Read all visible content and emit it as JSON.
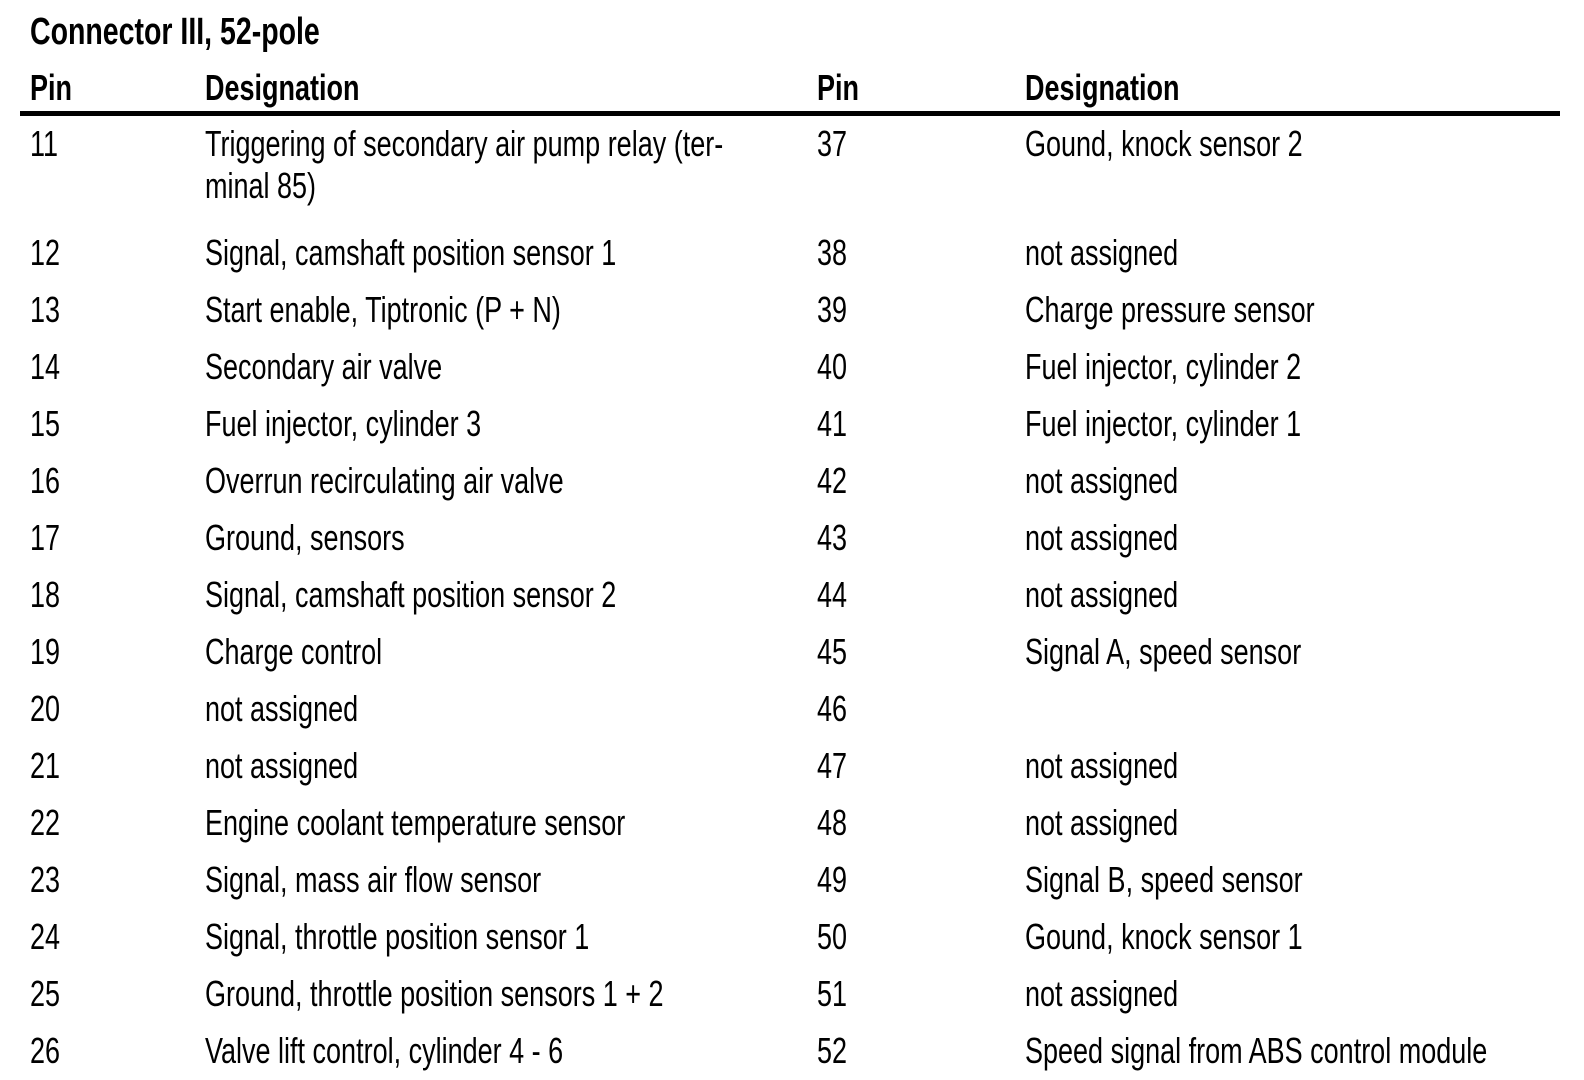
{
  "title": "Connector III, 52-pole",
  "headers": {
    "pin_left": "Pin",
    "designation_left": "Designation",
    "pin_right": "Pin",
    "designation_right": "Designation"
  },
  "rows": [
    {
      "l_pin": "11",
      "l_desig": "Triggering of secondary air pump relay (ter-\nminal 85)",
      "r_pin": "37",
      "r_desig": "Gound, knock sensor 2"
    },
    {
      "l_pin": "12",
      "l_desig": "Signal, camshaft position sensor 1",
      "r_pin": "38",
      "r_desig": "not assigned"
    },
    {
      "l_pin": "13",
      "l_desig": "Start enable, Tiptronic (P + N)",
      "r_pin": "39",
      "r_desig": "Charge pressure sensor"
    },
    {
      "l_pin": "14",
      "l_desig": "Secondary air valve",
      "r_pin": "40",
      "r_desig": "Fuel injector, cylinder 2"
    },
    {
      "l_pin": "15",
      "l_desig": "Fuel injector, cylinder 3",
      "r_pin": "41",
      "r_desig": "Fuel injector, cylinder 1"
    },
    {
      "l_pin": "16",
      "l_desig": "Overrun recirculating air valve",
      "r_pin": "42",
      "r_desig": "not assigned"
    },
    {
      "l_pin": "17",
      "l_desig": "Ground, sensors",
      "r_pin": "43",
      "r_desig": "not assigned"
    },
    {
      "l_pin": "18",
      "l_desig": "Signal, camshaft position sensor 2",
      "r_pin": "44",
      "r_desig": "not assigned"
    },
    {
      "l_pin": "19",
      "l_desig": "Charge control",
      "r_pin": "45",
      "r_desig": "Signal A, speed sensor"
    },
    {
      "l_pin": "20",
      "l_desig": "not assigned",
      "r_pin": "46",
      "r_desig": ""
    },
    {
      "l_pin": "21",
      "l_desig": "not assigned",
      "r_pin": "47",
      "r_desig": "not assigned"
    },
    {
      "l_pin": "22",
      "l_desig": "Engine coolant temperature sensor",
      "r_pin": "48",
      "r_desig": "not assigned"
    },
    {
      "l_pin": "23",
      "l_desig": "Signal, mass air flow sensor",
      "r_pin": "49",
      "r_desig": "Signal B, speed sensor"
    },
    {
      "l_pin": "24",
      "l_desig": "Signal, throttle position sensor 1",
      "r_pin": "50",
      "r_desig": "Gound, knock sensor 1"
    },
    {
      "l_pin": "25",
      "l_desig": "Ground, throttle position sensors 1 + 2",
      "r_pin": "51",
      "r_desig": "not assigned"
    },
    {
      "l_pin": "26",
      "l_desig": "Valve lift control, cylinder 4 - 6",
      "r_pin": "52",
      "r_desig": "Speed signal from ABS control module"
    }
  ]
}
